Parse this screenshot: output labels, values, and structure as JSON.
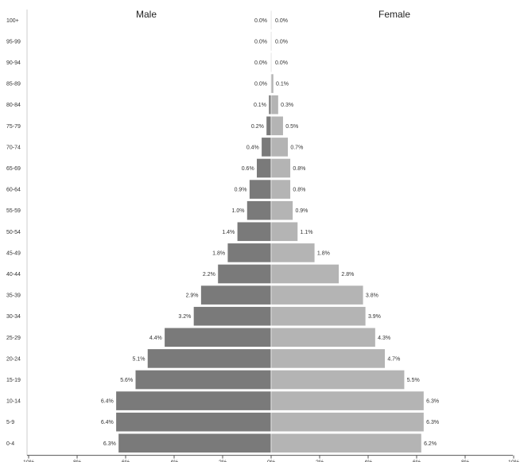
{
  "chart_data": {
    "type": "bar",
    "orientation": "horizontal",
    "layout": "population-pyramid",
    "left_title": "Male",
    "right_title": "Female",
    "categories": [
      "100+",
      "95-99",
      "90-94",
      "85-89",
      "80-84",
      "75-79",
      "70-74",
      "65-69",
      "60-64",
      "55-59",
      "50-54",
      "45-49",
      "40-44",
      "35-39",
      "30-34",
      "25-29",
      "20-24",
      "15-19",
      "10-14",
      "5-9",
      "0-4"
    ],
    "series": [
      {
        "name": "Male",
        "side": "left",
        "values": [
          0.0,
          0.0,
          0.0,
          0.0,
          0.1,
          0.2,
          0.4,
          0.6,
          0.9,
          1.0,
          1.4,
          1.8,
          2.2,
          2.9,
          3.2,
          4.4,
          5.1,
          5.6,
          6.4,
          6.4,
          6.3
        ],
        "labels": [
          "0.0%",
          "0.0%",
          "0.0%",
          "0.0%",
          "0.1%",
          "0.2%",
          "0.4%",
          "0.6%",
          "0.9%",
          "1.0%",
          "1.4%",
          "1.8%",
          "2.2%",
          "2.9%",
          "3.2%",
          "4.4%",
          "5.1%",
          "5.6%",
          "6.4%",
          "6.4%",
          "6.3%"
        ],
        "color": "#7a7a7a"
      },
      {
        "name": "Female",
        "side": "right",
        "values": [
          0.0,
          0.0,
          0.0,
          0.1,
          0.3,
          0.5,
          0.7,
          0.8,
          0.8,
          0.9,
          1.1,
          1.8,
          2.8,
          3.8,
          3.9,
          4.3,
          4.7,
          5.5,
          6.3,
          6.3,
          6.2
        ],
        "labels": [
          "0.0%",
          "0.0%",
          "0.0%",
          "0.1%",
          "0.3%",
          "0.5%",
          "0.7%",
          "0.8%",
          "0.8%",
          "0.9%",
          "1.1%",
          "1.8%",
          "2.8%",
          "3.8%",
          "3.9%",
          "4.3%",
          "4.7%",
          "5.5%",
          "6.3%",
          "6.3%",
          "6.2%"
        ],
        "color": "#b4b4b4"
      }
    ],
    "xaxis": {
      "ticks": [
        -10,
        -8,
        -6,
        -4,
        -2,
        0,
        2,
        4,
        6,
        8,
        10
      ],
      "tick_labels": [
        "10%",
        "8%",
        "6%",
        "4%",
        "2%",
        "0%",
        "2%",
        "4%",
        "6%",
        "8%",
        "10%"
      ],
      "range": [
        -10,
        10
      ]
    },
    "grid": false,
    "legend": "none"
  }
}
